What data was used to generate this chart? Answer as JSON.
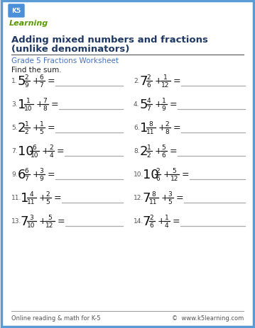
{
  "title_line1": "Adding mixed numbers and fractions",
  "title_line2": "(unlike denominators)",
  "subtitle": "Grade 5 Fractions Worksheet",
  "instruction": "Find the sum.",
  "border_color": "#5b9bd5",
  "title_color": "#1f3864",
  "subtitle_color": "#4472c4",
  "text_color": "#222222",
  "footer_left": "Online reading & math for K-5",
  "footer_right": "©  www.k5learning.com",
  "bg_color": "#ffffff",
  "problems": [
    {
      "num": "1.",
      "whole": "5",
      "n1": "2",
      "d1": "9",
      "n2": "6",
      "d2": "7"
    },
    {
      "num": "2.",
      "whole": "7",
      "n1": "2",
      "d1": "6",
      "n2": "1",
      "d2": "12"
    },
    {
      "num": "3.",
      "whole": "1",
      "n1": "1",
      "d1": "10",
      "n2": "7",
      "d2": "8"
    },
    {
      "num": "4.",
      "whole": "5",
      "n1": "4",
      "d1": "7",
      "n2": "1",
      "d2": "9"
    },
    {
      "num": "5.",
      "whole": "2",
      "n1": "1",
      "d1": "2",
      "n2": "1",
      "d2": "5"
    },
    {
      "num": "6.",
      "whole": "1",
      "n1": "8",
      "d1": "11",
      "n2": "2",
      "d2": "8"
    },
    {
      "num": "7.",
      "whole": "10",
      "n1": "6",
      "d1": "10",
      "n2": "2",
      "d2": "4"
    },
    {
      "num": "8.",
      "whole": "2",
      "n1": "1",
      "d1": "2",
      "n2": "5",
      "d2": "6"
    },
    {
      "num": "9.",
      "whole": "6",
      "n1": "6",
      "d1": "7",
      "n2": "3",
      "d2": "9"
    },
    {
      "num": "10.",
      "whole": "10",
      "n1": "2",
      "d1": "6",
      "n2": "5",
      "d2": "12"
    },
    {
      "num": "11.",
      "whole": "1",
      "n1": "4",
      "d1": "11",
      "n2": "2",
      "d2": "5"
    },
    {
      "num": "12.",
      "whole": "7",
      "n1": "8",
      "d1": "11",
      "n2": "3",
      "d2": "5"
    },
    {
      "num": "13.",
      "whole": "7",
      "n1": "3",
      "d1": "10",
      "n2": "5",
      "d2": "12"
    },
    {
      "num": "14.",
      "whole": "7",
      "n1": "2",
      "d1": "6",
      "n2": "1",
      "d2": "4"
    }
  ]
}
